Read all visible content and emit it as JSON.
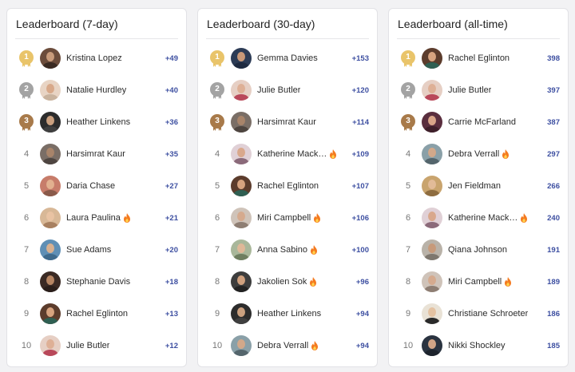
{
  "colors": {
    "gold": "#e9c46a",
    "silver": "#a3a3a3",
    "bronze": "#a87a4a",
    "score": "#3d4fa1",
    "fire": "#f47b20"
  },
  "boards": [
    {
      "title": "Leaderboard (7-day)",
      "rows": [
        {
          "rank": "1",
          "name": "Kristina Lopez",
          "score": "+49",
          "fire": false,
          "avatar": [
            "#6b4c3b",
            "#c89b7b",
            "#3a2a22"
          ]
        },
        {
          "rank": "2",
          "name": "Natalie Hurdley",
          "score": "+40",
          "fire": false,
          "avatar": [
            "#e8d4c4",
            "#d8a98a",
            "#c9b39e"
          ]
        },
        {
          "rank": "3",
          "name": "Heather Linkens",
          "score": "+36",
          "fire": false,
          "avatar": [
            "#2c2c2c",
            "#caa07f",
            "#3f3f3f"
          ]
        },
        {
          "rank": "4",
          "name": "Harsimrat Kaur",
          "score": "+35",
          "fire": false,
          "avatar": [
            "#7a6e66",
            "#a8846a",
            "#4e4540"
          ]
        },
        {
          "rank": "5",
          "name": "Daria Chase",
          "score": "+27",
          "fire": false,
          "avatar": [
            "#c77c6a",
            "#e2b08f",
            "#8a5a4a"
          ]
        },
        {
          "rank": "6",
          "name": "Laura Paulina",
          "score": "+21",
          "fire": true,
          "avatar": [
            "#d8b897",
            "#e9c3a3",
            "#a88060"
          ]
        },
        {
          "rank": "7",
          "name": "Sue Adams",
          "score": "+20",
          "fire": false,
          "avatar": [
            "#5f8fb5",
            "#d7b090",
            "#3f6a8c"
          ]
        },
        {
          "rank": "8",
          "name": "Stephanie Davis",
          "score": "+18",
          "fire": false,
          "avatar": [
            "#3b2a24",
            "#b68563",
            "#2a1e1a"
          ]
        },
        {
          "rank": "9",
          "name": "Rachel Eglinton",
          "score": "+13",
          "fire": false,
          "avatar": [
            "#5c3c2c",
            "#d7a37f",
            "#2f5f52"
          ]
        },
        {
          "rank": "10",
          "name": "Julie Butler",
          "score": "+12",
          "fire": false,
          "avatar": [
            "#e6cfc4",
            "#deb096",
            "#b9485a"
          ]
        }
      ]
    },
    {
      "title": "Leaderboard (30-day)",
      "rows": [
        {
          "rank": "1",
          "name": "Gemma Davies",
          "score": "+153",
          "fire": false,
          "avatar": [
            "#2c3b55",
            "#c89878",
            "#1e2a40"
          ]
        },
        {
          "rank": "2",
          "name": "Julie Butler",
          "score": "+120",
          "fire": false,
          "avatar": [
            "#e6cfc4",
            "#deb096",
            "#b9485a"
          ]
        },
        {
          "rank": "3",
          "name": "Harsimrat Kaur",
          "score": "+114",
          "fire": false,
          "avatar": [
            "#7a6e66",
            "#a8846a",
            "#4e4540"
          ]
        },
        {
          "rank": "4",
          "name": "Katherine Mack…",
          "score": "+109",
          "fire": true,
          "avatar": [
            "#e0d0d6",
            "#d9a88c",
            "#8b6a7a"
          ]
        },
        {
          "rank": "5",
          "name": "Rachel Eglinton",
          "score": "+107",
          "fire": false,
          "avatar": [
            "#5c3c2c",
            "#d7a37f",
            "#2f5f52"
          ]
        },
        {
          "rank": "6",
          "name": "Miri Campbell",
          "score": "+106",
          "fire": true,
          "avatar": [
            "#cfc3b9",
            "#d5aa8e",
            "#8e7e73"
          ]
        },
        {
          "rank": "7",
          "name": "Anna Sabino",
          "score": "+100",
          "fire": true,
          "avatar": [
            "#a9b79a",
            "#dfb898",
            "#6f7e60"
          ]
        },
        {
          "rank": "8",
          "name": "Jakolien Sok",
          "score": "+96",
          "fire": true,
          "avatar": [
            "#3d3d3d",
            "#cfa07e",
            "#222222"
          ]
        },
        {
          "rank": "9",
          "name": "Heather Linkens",
          "score": "+94",
          "fire": false,
          "avatar": [
            "#2c2c2c",
            "#caa07f",
            "#3f3f3f"
          ]
        },
        {
          "rank": "10",
          "name": "Debra Verrall",
          "score": "+94",
          "fire": true,
          "avatar": [
            "#8aa0a8",
            "#d2a88a",
            "#54656c"
          ]
        }
      ]
    },
    {
      "title": "Leaderboard (all-time)",
      "rows": [
        {
          "rank": "1",
          "name": "Rachel Eglinton",
          "score": "398",
          "fire": false,
          "avatar": [
            "#5c3c2c",
            "#d7a37f",
            "#2f5f52"
          ]
        },
        {
          "rank": "2",
          "name": "Julie Butler",
          "score": "397",
          "fire": false,
          "avatar": [
            "#e6cfc4",
            "#deb096",
            "#b9485a"
          ]
        },
        {
          "rank": "3",
          "name": "Carrie McFarland",
          "score": "387",
          "fire": false,
          "avatar": [
            "#5a2e3e",
            "#d9a589",
            "#3e1f2a"
          ]
        },
        {
          "rank": "4",
          "name": "Debra Verrall",
          "score": "297",
          "fire": true,
          "avatar": [
            "#8aa0a8",
            "#d2a88a",
            "#54656c"
          ]
        },
        {
          "rank": "5",
          "name": "Jen Fieldman",
          "score": "266",
          "fire": false,
          "avatar": [
            "#c9a46e",
            "#e2bb98",
            "#8e6d40"
          ]
        },
        {
          "rank": "6",
          "name": "Katherine Mack…",
          "score": "240",
          "fire": true,
          "avatar": [
            "#e0d0d6",
            "#d9a88c",
            "#8b6a7a"
          ]
        },
        {
          "rank": "7",
          "name": "Qiana Johnson",
          "score": "191",
          "fire": false,
          "avatar": [
            "#b9b2a8",
            "#c79a7a",
            "#7e776e"
          ]
        },
        {
          "rank": "8",
          "name": "Miri Campbell",
          "score": "189",
          "fire": true,
          "avatar": [
            "#cfc3b9",
            "#d5aa8e",
            "#8e7e73"
          ]
        },
        {
          "rank": "9",
          "name": "Christiane Schroeter",
          "score": "186",
          "fire": false,
          "avatar": [
            "#e9e2d6",
            "#e4c2a2",
            "#2a2a2a"
          ]
        },
        {
          "rank": "10",
          "name": "Nikki Shockley",
          "score": "185",
          "fire": false,
          "avatar": [
            "#2a3340",
            "#d1a486",
            "#1d232c"
          ]
        }
      ]
    }
  ]
}
